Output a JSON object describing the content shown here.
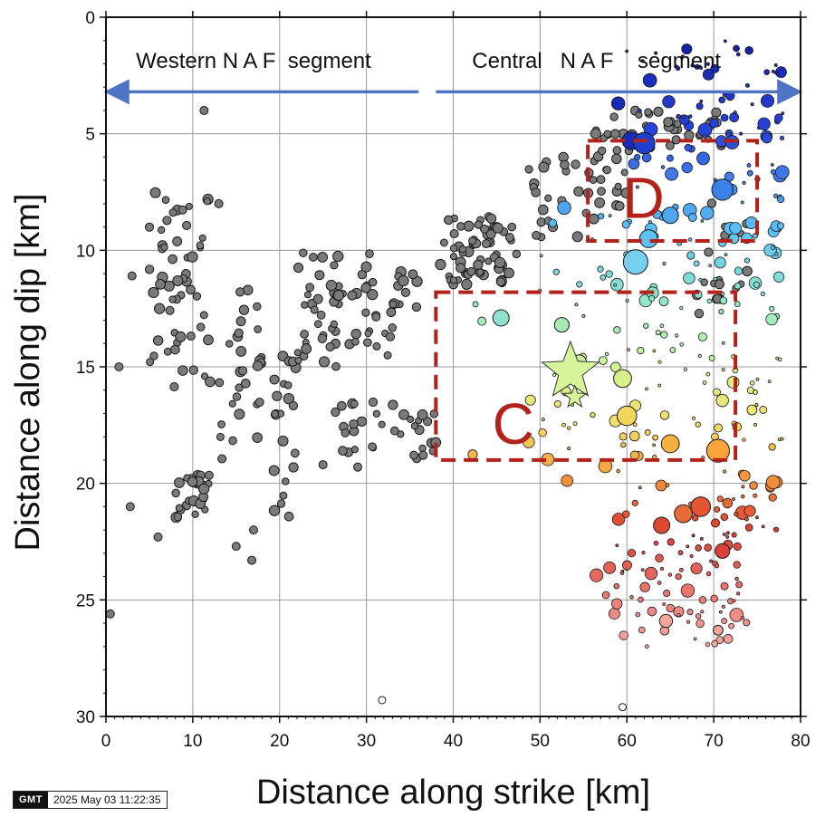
{
  "chart_data": {
    "type": "scatter",
    "title": "",
    "xlabel": "Distance along strike [km]",
    "ylabel": "Distance along dip [km]",
    "xlim": [
      0,
      80
    ],
    "ylim": [
      30,
      0
    ],
    "y_inverted": true,
    "grid": true,
    "xticks": [
      "0",
      "10",
      "20",
      "30",
      "40",
      "50",
      "60",
      "70",
      "80"
    ],
    "yticks": [
      "0",
      "5",
      "10",
      "15",
      "20",
      "25",
      "30"
    ],
    "segments": [
      {
        "label": "Western N A F  segment",
        "x_start": 0.5,
        "x_end": 36,
        "y": 3.2,
        "label_x": 17,
        "label_y": 1.9
      },
      {
        "label": "Central   N A F    segment",
        "x_start": 38,
        "x_end": 79.5,
        "y": 3.2,
        "label_x": 56.5,
        "label_y": 1.9
      }
    ],
    "boxes": [
      {
        "label": "D",
        "x0": 55.5,
        "x1": 75,
        "y0": 5.3,
        "y1": 9.6,
        "label_x": 59.5,
        "label_y": 8.6
      },
      {
        "label": "C",
        "x0": 38,
        "x1": 72.5,
        "y0": 11.8,
        "y1": 19.0,
        "label_x": 44.5,
        "label_y": 18.3
      }
    ],
    "stars": [
      {
        "x": 53.5,
        "y": 15.2,
        "size": "large",
        "color": "#d6f59a"
      },
      {
        "x": 54.0,
        "y": 16.3,
        "size": "small",
        "color": "#d6f59a"
      }
    ],
    "gray_clusters": [
      {
        "x": [
          5,
          12
        ],
        "y": [
          7,
          16
        ],
        "n": 55
      },
      {
        "x": [
          8,
          12
        ],
        "y": [
          19.5,
          21.5
        ],
        "n": 28
      },
      {
        "x": [
          13,
          18
        ],
        "y": [
          11.5,
          19
        ],
        "n": 30
      },
      {
        "x": [
          19,
          22
        ],
        "y": [
          14.5,
          21.5
        ],
        "n": 22
      },
      {
        "x": [
          22,
          36
        ],
        "y": [
          10,
          15
        ],
        "n": 75
      },
      {
        "x": [
          26,
          38
        ],
        "y": [
          16.5,
          19
        ],
        "n": 35
      },
      {
        "x": [
          38,
          48
        ],
        "y": [
          8.5,
          11.5
        ],
        "n": 70
      },
      {
        "x": [
          48,
          60
        ],
        "y": [
          5.5,
          9.5
        ],
        "n": 40
      },
      {
        "x": [
          56,
          72
        ],
        "y": [
          4,
          6
        ],
        "n": 40
      },
      {
        "x": [
          68,
          74
        ],
        "y": [
          6.5,
          13
        ],
        "n": 20
      }
    ],
    "gray_points": [
      [
        0.5,
        25.6
      ],
      [
        1.5,
        15
      ],
      [
        2.8,
        21
      ],
      [
        11.3,
        4
      ],
      [
        6,
        22.3
      ],
      [
        15,
        22.7
      ],
      [
        16.8,
        23.3
      ],
      [
        17,
        22
      ],
      [
        31.8,
        29.3
      ],
      [
        59.5,
        29.6
      ],
      [
        25,
        19.2
      ],
      [
        29,
        19.3
      ],
      [
        13,
        8
      ],
      [
        3,
        11.1
      ]
    ],
    "colored_points": [
      {
        "x": 60.5,
        "y": 5.3,
        "depth_color": "#1a2ab8",
        "size": 11
      },
      {
        "x": 62,
        "y": 5.4,
        "depth_color": "#1c3fd1",
        "size": 13
      },
      {
        "x": 59,
        "y": 3.7,
        "depth_color": "#1a2ab8",
        "size": 8
      },
      {
        "x": 71,
        "y": 7.4,
        "depth_color": "#3b82e8",
        "size": 13
      },
      {
        "x": 65,
        "y": 8.5,
        "depth_color": "#4ea7ef",
        "size": 10
      },
      {
        "x": 62.5,
        "y": 9.5,
        "depth_color": "#5cc1f2",
        "size": 11
      },
      {
        "x": 61,
        "y": 10.5,
        "depth_color": "#77cff0",
        "size": 15
      },
      {
        "x": 45.5,
        "y": 12.9,
        "depth_color": "#8fe0cc",
        "size": 10
      },
      {
        "x": 52.5,
        "y": 13.2,
        "depth_color": "#a6eab3",
        "size": 9
      },
      {
        "x": 54.5,
        "y": 14.8,
        "depth_color": "#c6f09d",
        "size": 9
      },
      {
        "x": 59.5,
        "y": 15.5,
        "depth_color": "#d8f08a",
        "size": 11
      },
      {
        "x": 60,
        "y": 17.1,
        "depth_color": "#f0d75b",
        "size": 12
      },
      {
        "x": 65,
        "y": 18.3,
        "depth_color": "#f5b240",
        "size": 11
      },
      {
        "x": 70.5,
        "y": 18.6,
        "depth_color": "#f7a538",
        "size": 14
      },
      {
        "x": 66.5,
        "y": 21.3,
        "depth_color": "#e86a36",
        "size": 11
      },
      {
        "x": 68.5,
        "y": 21.0,
        "depth_color": "#e35533",
        "size": 12
      },
      {
        "x": 64,
        "y": 21.8,
        "depth_color": "#dd4832",
        "size": 10
      },
      {
        "x": 71,
        "y": 22.9,
        "depth_color": "#d9403a",
        "size": 9
      },
      {
        "x": 64.5,
        "y": 25.9,
        "depth_color": "#f1a79d",
        "size": 8
      },
      {
        "x": 70.5,
        "y": 26.3,
        "depth_color": "#f1a79d",
        "size": 6
      }
    ],
    "colored_field": {
      "x": [
        40,
        78
      ],
      "y": [
        1,
        27
      ],
      "n": 380
    }
  },
  "footer": {
    "logo": "GMT",
    "timestamp": "2025 May 03 11:22:35"
  }
}
